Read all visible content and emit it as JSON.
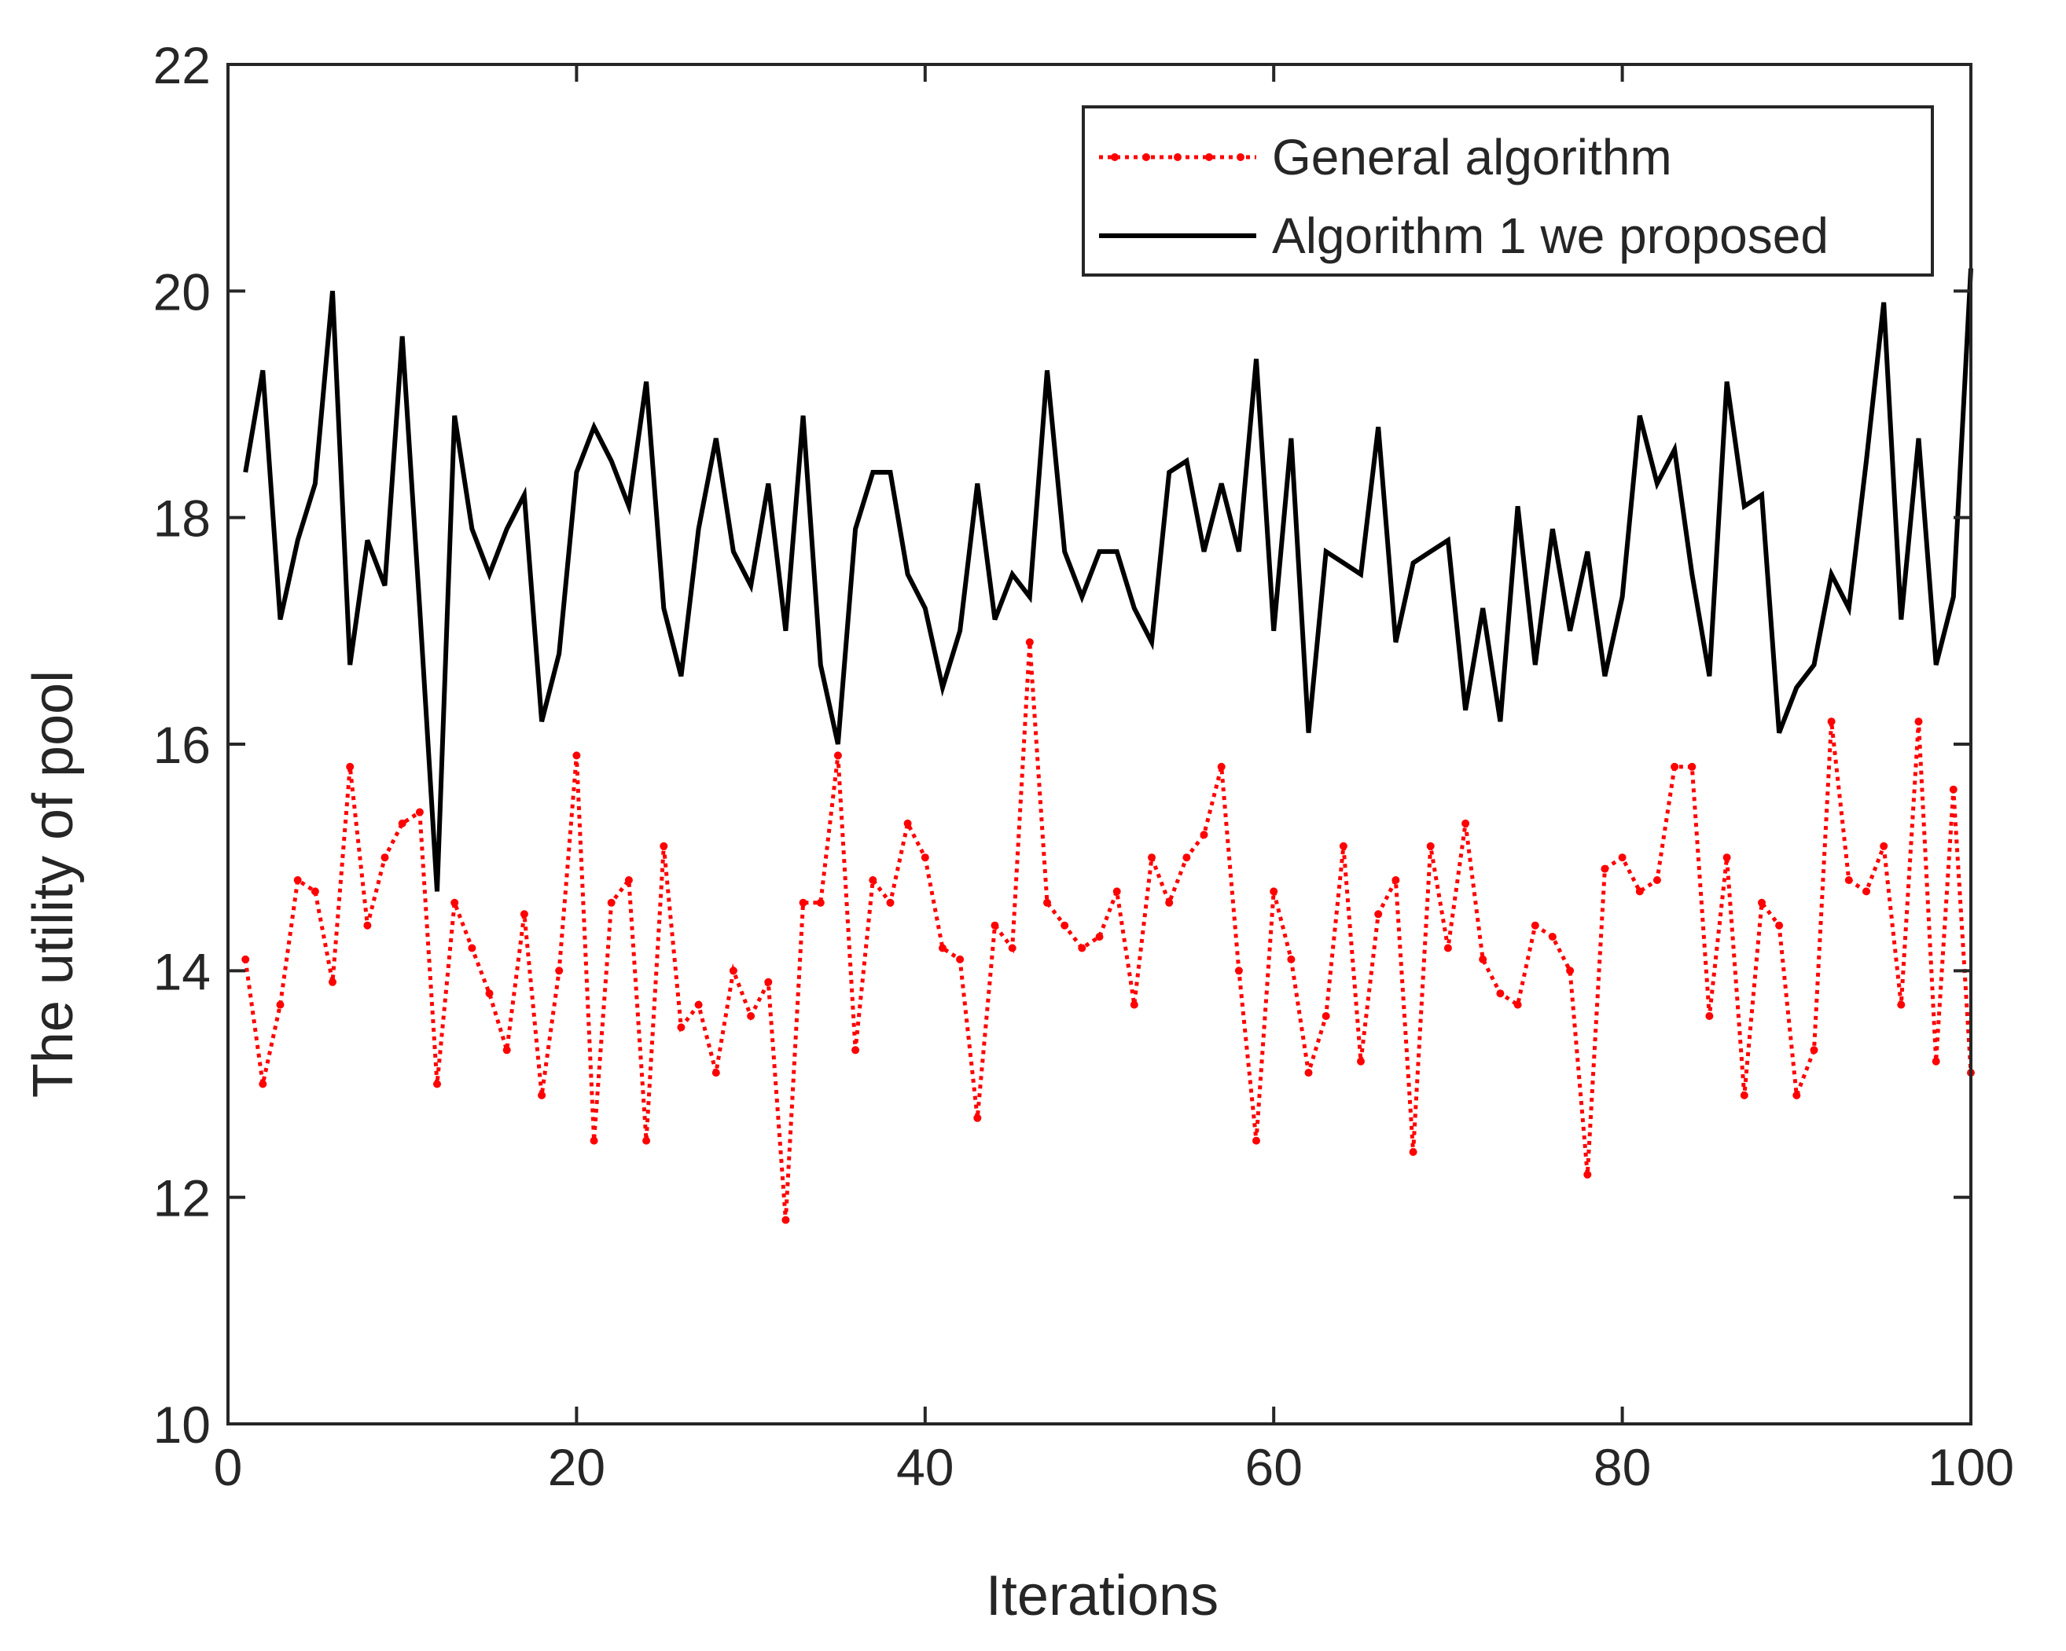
{
  "chart_data": {
    "type": "line",
    "title": "",
    "xlabel": "Iterations",
    "ylabel": "The utility of pool",
    "xlim": [
      0,
      100
    ],
    "ylim": [
      10,
      22
    ],
    "xticks": [
      0,
      20,
      40,
      60,
      80,
      100
    ],
    "yticks": [
      10,
      12,
      14,
      16,
      18,
      20,
      22
    ],
    "grid": false,
    "legend_position": "top-right",
    "series": [
      {
        "name": "General algorithm",
        "color": "#ff0000",
        "style": "dotted",
        "marker": "dot",
        "values": [
          14.1,
          13.0,
          13.7,
          14.8,
          14.7,
          13.9,
          15.8,
          14.4,
          15.0,
          15.3,
          15.4,
          13.0,
          14.6,
          14.2,
          13.8,
          13.3,
          14.5,
          12.9,
          14.0,
          15.9,
          12.5,
          14.6,
          14.8,
          12.5,
          15.1,
          13.5,
          13.7,
          13.1,
          14.0,
          13.6,
          13.9,
          11.8,
          14.6,
          14.6,
          15.9,
          13.3,
          14.8,
          14.6,
          15.3,
          15.0,
          14.2,
          14.1,
          12.7,
          14.4,
          14.2,
          16.9,
          14.6,
          14.4,
          14.2,
          14.3,
          14.7,
          13.7,
          15.0,
          14.6,
          15.0,
          15.2,
          15.8,
          14.0,
          12.5,
          14.7,
          14.1,
          13.1,
          13.6,
          15.1,
          13.2,
          14.5,
          14.8,
          12.4,
          15.1,
          14.2,
          15.3,
          14.1,
          13.8,
          13.7,
          14.4,
          14.3,
          14.0,
          12.2,
          14.9,
          15.0,
          14.7,
          14.8,
          15.8,
          15.8,
          13.6,
          15.0,
          12.9,
          14.6,
          14.4,
          12.9,
          13.3,
          16.2,
          14.8,
          14.7,
          15.1,
          13.7,
          16.2,
          13.2,
          15.6,
          13.1
        ]
      },
      {
        "name": "Algorithm 1 we proposed",
        "color": "#000000",
        "style": "solid",
        "marker": "none",
        "values": [
          18.4,
          19.3,
          17.1,
          17.8,
          18.3,
          20.0,
          16.7,
          17.8,
          17.4,
          19.6,
          17.2,
          14.7,
          18.9,
          17.9,
          17.5,
          17.9,
          18.2,
          16.2,
          16.8,
          18.4,
          18.8,
          18.5,
          18.1,
          19.2,
          17.2,
          16.6,
          17.9,
          18.7,
          17.7,
          17.4,
          18.3,
          17.0,
          18.9,
          16.7,
          16.0,
          17.9,
          18.4,
          18.4,
          17.5,
          17.2,
          16.5,
          17.0,
          18.3,
          17.1,
          17.5,
          17.3,
          19.3,
          17.7,
          17.3,
          17.7,
          17.7,
          17.2,
          16.9,
          18.4,
          18.5,
          17.7,
          18.3,
          17.7,
          19.4,
          17.0,
          18.7,
          16.1,
          17.7,
          17.6,
          17.5,
          18.8,
          16.9,
          17.6,
          17.7,
          17.8,
          16.3,
          17.2,
          16.2,
          18.1,
          16.7,
          17.9,
          17.0,
          17.7,
          16.6,
          17.3,
          18.9,
          18.3,
          18.6,
          17.5,
          16.6,
          19.2,
          18.1,
          18.2,
          16.1,
          16.5,
          16.7,
          17.5,
          17.2,
          18.5,
          19.9,
          17.1,
          18.7,
          16.7,
          17.3,
          20.2
        ]
      }
    ]
  }
}
